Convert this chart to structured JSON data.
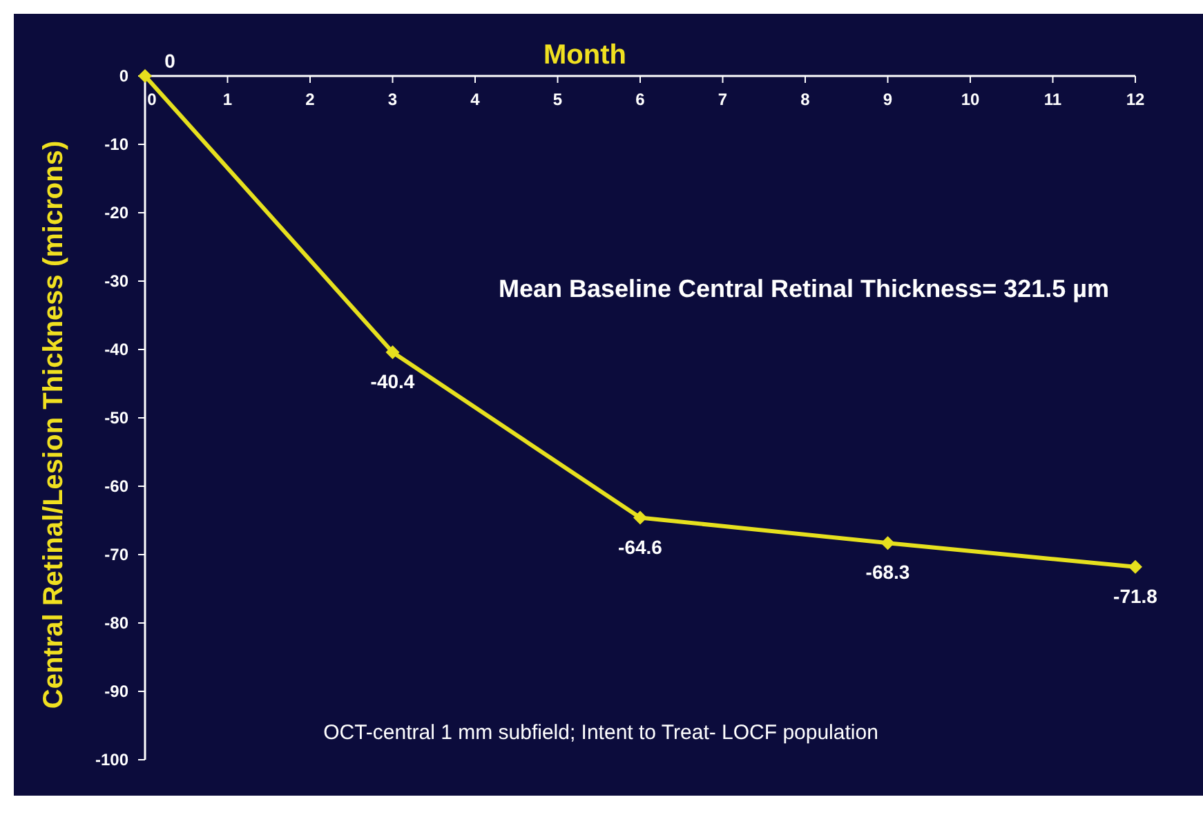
{
  "chart_data": {
    "type": "line",
    "xlabel": "Month",
    "ylabel": "Central Retinal/Lesion Thickness (microns)",
    "x": [
      0,
      3,
      6,
      9,
      12
    ],
    "series": [
      {
        "color": "#e6e01e",
        "values": [
          0,
          -40.4,
          -64.6,
          -68.3,
          -71.8
        ]
      }
    ],
    "xlim": [
      0,
      12
    ],
    "xticks": [
      0,
      1,
      2,
      3,
      4,
      5,
      6,
      7,
      8,
      9,
      10,
      11,
      12
    ],
    "ylim": [
      -100,
      0
    ],
    "yticks": [
      0,
      -10,
      -20,
      -30,
      -40,
      -50,
      -60,
      -70,
      -80,
      -90,
      -100
    ],
    "data_labels": true,
    "marker": "diamond",
    "line_style": "solid",
    "annotations": [
      "Mean Baseline Central Retinal Thickness= 321.5 µm",
      "OCT-central 1 mm subfield; Intent to Treat- LOCF population"
    ]
  }
}
